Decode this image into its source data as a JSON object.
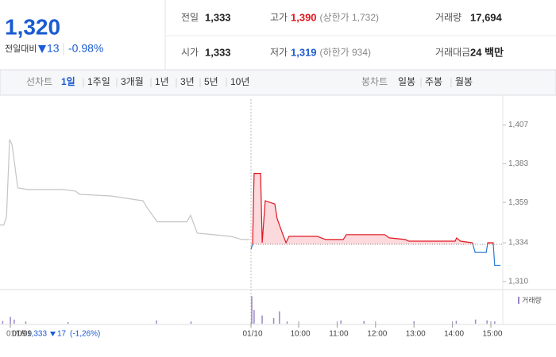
{
  "header": {
    "price": "1,320",
    "change_label": "전일대비",
    "change": "13",
    "percent": "-0.98%"
  },
  "stats": [
    {
      "label": "전일",
      "value": "1,333"
    },
    {
      "label": "고가",
      "value": "1,390",
      "extra": "(상한가 1,732)"
    },
    {
      "label": "거래량",
      "value": "17,694"
    },
    {
      "label": "시가",
      "value": "1,333"
    },
    {
      "label": "저가",
      "value": "1,319",
      "extra": "(하한가 934)"
    },
    {
      "label": "거래대금",
      "value": "24 백만"
    }
  ],
  "tabs": {
    "line_label": "선차트",
    "line_items": [
      "1일",
      "1주일",
      "3개월",
      "1년",
      "3년",
      "5년",
      "10년"
    ],
    "selected_index": 0,
    "candle_label": "봉차트",
    "candle_items": [
      "일봉",
      "주봉",
      "월봉"
    ]
  },
  "footer": {
    "date": "01/09",
    "price": "1,333",
    "change": "17",
    "percent": "(-1,26%)"
  },
  "chart_data": {
    "type": "line",
    "xlim": [
      -0.27,
      12.81
    ],
    "ylim": [
      1305,
      1423
    ],
    "yticks": [
      {
        "value": 1407,
        "label": "1,407"
      },
      {
        "value": 1383,
        "label": "1,383"
      },
      {
        "value": 1359,
        "label": "1,359"
      },
      {
        "value": 1334,
        "label": "1,334"
      },
      {
        "value": 1310,
        "label": "1,310"
      }
    ],
    "xticks": [
      {
        "value": 0,
        "label": "01/09"
      },
      {
        "value": 6.26,
        "label": "01/10"
      },
      {
        "value": 7.5,
        "label": "10:00"
      },
      {
        "value": 8.5,
        "label": "11:00"
      },
      {
        "value": 9.5,
        "label": "12:00"
      },
      {
        "value": 10.5,
        "label": "13:00"
      },
      {
        "value": 11.5,
        "label": "14:00"
      },
      {
        "value": 12.5,
        "label": "15:00"
      }
    ],
    "baseline": 1333,
    "color_up": "#e0161f",
    "color_down": "#2a78d6",
    "color_prev": "#c4c4c4",
    "fill_up": "#fbd9dc",
    "series": [
      {
        "x": [
          -0.27,
          -0.17,
          -0.1,
          -0.02,
          0.04,
          0.1,
          0.19,
          0.45,
          1.38,
          1.69,
          1.8,
          2.62,
          3.45,
          3.55,
          3.82,
          4.59,
          4.69,
          4.86,
          5.72,
          6.03,
          6.22
        ],
        "values": [
          1345,
          1345,
          1350,
          1398,
          1395,
          1385,
          1368,
          1367,
          1367,
          1366,
          1364,
          1363,
          1360,
          1356,
          1347,
          1347,
          1351,
          1340,
          1338,
          1336,
          1336
        ]
      },
      {
        "x": [
          6.26,
          6.3,
          6.34,
          6.51,
          6.55,
          6.63,
          6.88,
          6.94,
          7.0,
          7.09,
          7.17,
          7.25,
          7.98,
          8.2,
          8.66,
          8.74,
          9.74,
          9.86,
          10.27,
          10.37,
          11.57,
          11.61,
          11.71,
          12.02,
          12.09,
          12.38,
          12.42,
          12.56,
          12.6,
          12.75
        ],
        "values": [
          1330,
          1333,
          1377,
          1377,
          1334,
          1360,
          1358,
          1349,
          1345,
          1339,
          1334,
          1338,
          1338,
          1336,
          1336,
          1339,
          1339,
          1337,
          1336,
          1335,
          1335,
          1337,
          1335,
          1334,
          1328,
          1328,
          1334,
          1334,
          1320,
          1320
        ]
      }
    ],
    "volume": {
      "name": "거래량",
      "color": "#9b86c8",
      "vlim": [
        0,
        110
      ],
      "x": [
        -0.2,
        0.0,
        0.1,
        0.4,
        1.5,
        3.8,
        4.7,
        6.28,
        6.34,
        6.55,
        6.85,
        7.0,
        7.2,
        8.6,
        9.2,
        10.5,
        11.6,
        12.1,
        12.4,
        12.6
      ],
      "values": [
        10,
        25,
        15,
        8,
        6,
        12,
        8,
        100,
        50,
        30,
        20,
        45,
        8,
        12,
        10,
        8,
        10,
        15,
        12,
        8
      ]
    }
  }
}
